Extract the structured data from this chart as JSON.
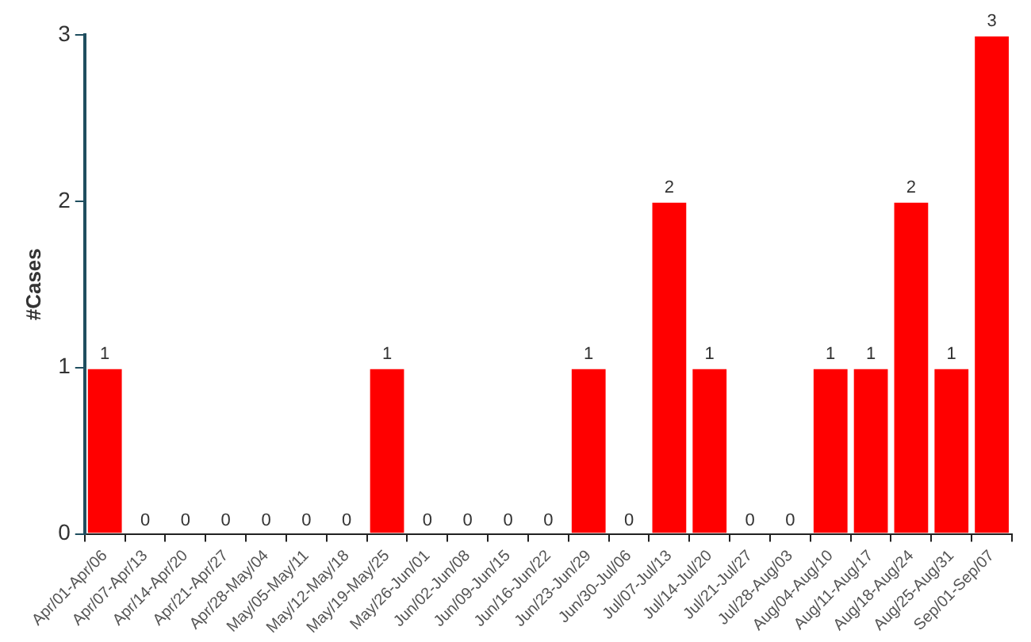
{
  "chart_data": {
    "type": "bar",
    "ylabel": "#Cases",
    "categories": [
      "Apr/01-Apr/06",
      "Apr/07-Apr/13",
      "Apr/14-Apr/20",
      "Apr/21-Apr/27",
      "Apr/28-May/04",
      "May/05-May/11",
      "May/12-May/18",
      "May/19-May/25",
      "May/26-Jun/01",
      "Jun/02-Jun/08",
      "Jun/09-Jun/15",
      "Jun/16-Jun/22",
      "Jun/23-Jun/29",
      "Jun/30-Jul/06",
      "Jul/07-Jul/13",
      "Jul/14-Jul/20",
      "Jul/21-Jul/27",
      "Jul/28-Aug/03",
      "Aug/04-Aug/10",
      "Aug/11-Aug/17",
      "Aug/18-Aug/24",
      "Aug/25-Aug/31",
      "Sep/01-Sep/07"
    ],
    "values": [
      1,
      0,
      0,
      0,
      0,
      0,
      0,
      1,
      0,
      0,
      0,
      0,
      1,
      0,
      2,
      1,
      0,
      0,
      1,
      1,
      2,
      1,
      3
    ],
    "color": "#ff0000",
    "ylim": [
      0,
      3
    ],
    "yticks": [
      0,
      1,
      2,
      3
    ],
    "grid": false,
    "legend": false,
    "data_labels": true
  }
}
